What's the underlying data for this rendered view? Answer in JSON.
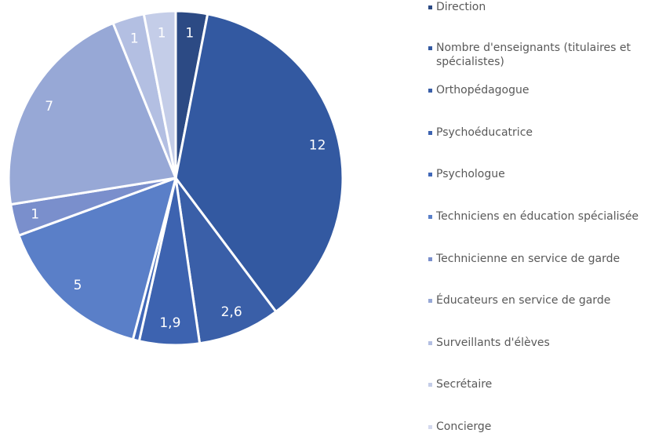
{
  "chart_data": {
    "type": "pie",
    "categories": [
      "Direction",
      "Nombre d'enseignants (titulaires et spécialistes)",
      "Orthopédagogue",
      "Psychoéducatrice",
      "Psychologue",
      "Techniciens en éducation spécialisée",
      "Technicienne en service de garde",
      "Éducateurs en service de garde",
      "Surveillants d'élèves",
      "Secrétaire",
      "Concierge"
    ],
    "values": [
      1,
      12,
      2.6,
      1.9,
      0.2,
      5,
      1,
      7,
      1,
      1,
      0
    ],
    "value_labels": [
      "1",
      "12",
      "2,6",
      "1,9",
      null,
      "5",
      "1",
      "7",
      "1",
      "1",
      null
    ],
    "colors": [
      "#2c4a84",
      "#3359a1",
      "#3a5fa8",
      "#3d63b0",
      "#4168b8",
      "#5a7fc8",
      "#7a8fcc",
      "#97a8d6",
      "#b3bfe2",
      "#c4cde8",
      "#d4d9ee"
    ],
    "legend": "right"
  }
}
